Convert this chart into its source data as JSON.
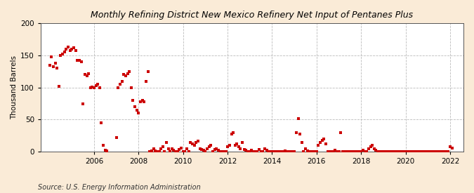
{
  "title": "Monthly Refining District New Mexico Refinery Net Input of Pentanes Plus",
  "ylabel": "Thousand Barrels",
  "source": "Source: U.S. Energy Information Administration",
  "background_color": "#faebd7",
  "plot_background_color": "#ffffff",
  "marker_color": "#cc0000",
  "marker": "s",
  "marker_size": 3,
  "ylim": [
    0,
    200
  ],
  "yticks": [
    0,
    50,
    100,
    150,
    200
  ],
  "xlim_start": 2003.6,
  "xlim_end": 2022.6,
  "xticks": [
    2006,
    2008,
    2010,
    2012,
    2014,
    2016,
    2018,
    2020,
    2022
  ],
  "data": [
    [
      2004.0,
      135
    ],
    [
      2004.08,
      148
    ],
    [
      2004.17,
      133
    ],
    [
      2004.25,
      138
    ],
    [
      2004.33,
      130
    ],
    [
      2004.42,
      102
    ],
    [
      2004.5,
      150
    ],
    [
      2004.58,
      152
    ],
    [
      2004.67,
      155
    ],
    [
      2004.75,
      160
    ],
    [
      2004.83,
      163
    ],
    [
      2004.92,
      158
    ],
    [
      2005.0,
      160
    ],
    [
      2005.08,
      162
    ],
    [
      2005.17,
      158
    ],
    [
      2005.25,
      142
    ],
    [
      2005.33,
      142
    ],
    [
      2005.42,
      140
    ],
    [
      2005.5,
      75
    ],
    [
      2005.58,
      120
    ],
    [
      2005.67,
      118
    ],
    [
      2005.75,
      122
    ],
    [
      2005.83,
      100
    ],
    [
      2005.92,
      101
    ],
    [
      2006.0,
      100
    ],
    [
      2006.08,
      103
    ],
    [
      2006.17,
      105
    ],
    [
      2006.25,
      100
    ],
    [
      2006.33,
      45
    ],
    [
      2006.42,
      10
    ],
    [
      2006.5,
      2
    ],
    [
      2006.58,
      1
    ],
    [
      2007.0,
      22
    ],
    [
      2007.08,
      100
    ],
    [
      2007.17,
      105
    ],
    [
      2007.25,
      110
    ],
    [
      2007.33,
      120
    ],
    [
      2007.42,
      118
    ],
    [
      2007.5,
      122
    ],
    [
      2007.58,
      125
    ],
    [
      2007.67,
      100
    ],
    [
      2007.75,
      80
    ],
    [
      2007.83,
      70
    ],
    [
      2007.92,
      65
    ],
    [
      2008.0,
      60
    ],
    [
      2008.08,
      78
    ],
    [
      2008.17,
      80
    ],
    [
      2008.25,
      78
    ],
    [
      2008.33,
      110
    ],
    [
      2008.42,
      125
    ],
    [
      2008.5,
      0
    ],
    [
      2008.58,
      1
    ],
    [
      2008.67,
      5
    ],
    [
      2008.75,
      1
    ],
    [
      2008.83,
      0
    ],
    [
      2008.92,
      0
    ],
    [
      2009.0,
      5
    ],
    [
      2009.08,
      8
    ],
    [
      2009.17,
      0
    ],
    [
      2009.25,
      15
    ],
    [
      2009.33,
      5
    ],
    [
      2009.42,
      0
    ],
    [
      2009.5,
      5
    ],
    [
      2009.58,
      2
    ],
    [
      2009.67,
      0
    ],
    [
      2009.75,
      0
    ],
    [
      2009.83,
      4
    ],
    [
      2009.92,
      6
    ],
    [
      2010.0,
      0
    ],
    [
      2010.08,
      0
    ],
    [
      2010.17,
      5
    ],
    [
      2010.25,
      0
    ],
    [
      2010.33,
      15
    ],
    [
      2010.42,
      12
    ],
    [
      2010.5,
      10
    ],
    [
      2010.58,
      15
    ],
    [
      2010.67,
      17
    ],
    [
      2010.75,
      5
    ],
    [
      2010.83,
      3
    ],
    [
      2010.92,
      2
    ],
    [
      2011.0,
      0
    ],
    [
      2011.08,
      5
    ],
    [
      2011.17,
      8
    ],
    [
      2011.25,
      10
    ],
    [
      2011.33,
      0
    ],
    [
      2011.42,
      3
    ],
    [
      2011.5,
      5
    ],
    [
      2011.58,
      2
    ],
    [
      2011.67,
      0
    ],
    [
      2011.75,
      0
    ],
    [
      2011.83,
      0
    ],
    [
      2011.92,
      0
    ],
    [
      2012.0,
      8
    ],
    [
      2012.08,
      10
    ],
    [
      2012.17,
      28
    ],
    [
      2012.25,
      30
    ],
    [
      2012.33,
      10
    ],
    [
      2012.42,
      12
    ],
    [
      2012.5,
      8
    ],
    [
      2012.58,
      5
    ],
    [
      2012.67,
      15
    ],
    [
      2012.75,
      3
    ],
    [
      2012.83,
      2
    ],
    [
      2012.92,
      0
    ],
    [
      2013.0,
      0
    ],
    [
      2013.08,
      2
    ],
    [
      2013.17,
      0
    ],
    [
      2013.25,
      0
    ],
    [
      2013.33,
      0
    ],
    [
      2013.42,
      3
    ],
    [
      2013.5,
      0
    ],
    [
      2013.58,
      0
    ],
    [
      2013.67,
      5
    ],
    [
      2013.75,
      2
    ],
    [
      2013.83,
      0
    ],
    [
      2013.92,
      0
    ],
    [
      2014.0,
      0
    ],
    [
      2014.08,
      0
    ],
    [
      2014.17,
      0
    ],
    [
      2014.25,
      0
    ],
    [
      2014.33,
      0
    ],
    [
      2014.42,
      0
    ],
    [
      2014.5,
      0
    ],
    [
      2014.58,
      1
    ],
    [
      2014.67,
      0
    ],
    [
      2014.75,
      0
    ],
    [
      2014.83,
      0
    ],
    [
      2014.92,
      0
    ],
    [
      2015.0,
      0
    ],
    [
      2015.08,
      30
    ],
    [
      2015.17,
      52
    ],
    [
      2015.25,
      28
    ],
    [
      2015.33,
      15
    ],
    [
      2015.42,
      0
    ],
    [
      2015.5,
      5
    ],
    [
      2015.58,
      1
    ],
    [
      2015.67,
      0
    ],
    [
      2015.75,
      0
    ],
    [
      2015.83,
      0
    ],
    [
      2015.92,
      0
    ],
    [
      2016.0,
      0
    ],
    [
      2016.08,
      10
    ],
    [
      2016.17,
      15
    ],
    [
      2016.25,
      18
    ],
    [
      2016.33,
      20
    ],
    [
      2016.42,
      12
    ],
    [
      2016.5,
      0
    ],
    [
      2016.58,
      0
    ],
    [
      2016.67,
      0
    ],
    [
      2016.75,
      0
    ],
    [
      2016.83,
      2
    ],
    [
      2016.92,
      0
    ],
    [
      2017.0,
      0
    ],
    [
      2017.08,
      30
    ],
    [
      2017.17,
      0
    ],
    [
      2017.25,
      0
    ],
    [
      2017.33,
      0
    ],
    [
      2017.42,
      0
    ],
    [
      2017.5,
      0
    ],
    [
      2017.58,
      0
    ],
    [
      2017.67,
      0
    ],
    [
      2017.75,
      0
    ],
    [
      2017.83,
      0
    ],
    [
      2017.92,
      0
    ],
    [
      2018.0,
      0
    ],
    [
      2018.08,
      2
    ],
    [
      2018.17,
      0
    ],
    [
      2018.25,
      0
    ],
    [
      2018.33,
      5
    ],
    [
      2018.42,
      8
    ],
    [
      2018.5,
      10
    ],
    [
      2018.58,
      5
    ],
    [
      2018.67,
      2
    ],
    [
      2018.75,
      0
    ],
    [
      2018.83,
      0
    ],
    [
      2018.92,
      0
    ],
    [
      2019.0,
      0
    ],
    [
      2019.08,
      0
    ],
    [
      2019.17,
      0
    ],
    [
      2019.25,
      0
    ],
    [
      2019.33,
      0
    ],
    [
      2019.42,
      0
    ],
    [
      2019.5,
      0
    ],
    [
      2019.58,
      0
    ],
    [
      2019.67,
      0
    ],
    [
      2019.75,
      0
    ],
    [
      2019.83,
      0
    ],
    [
      2019.92,
      0
    ],
    [
      2020.0,
      0
    ],
    [
      2020.08,
      0
    ],
    [
      2020.17,
      0
    ],
    [
      2020.25,
      0
    ],
    [
      2020.33,
      0
    ],
    [
      2020.42,
      0
    ],
    [
      2020.5,
      0
    ],
    [
      2020.58,
      0
    ],
    [
      2020.67,
      0
    ],
    [
      2020.75,
      0
    ],
    [
      2020.83,
      0
    ],
    [
      2020.92,
      0
    ],
    [
      2021.0,
      0
    ],
    [
      2021.08,
      0
    ],
    [
      2021.17,
      0
    ],
    [
      2021.25,
      0
    ],
    [
      2021.33,
      0
    ],
    [
      2021.42,
      0
    ],
    [
      2021.5,
      0
    ],
    [
      2021.58,
      0
    ],
    [
      2021.67,
      0
    ],
    [
      2021.75,
      0
    ],
    [
      2021.83,
      0
    ],
    [
      2021.92,
      0
    ],
    [
      2022.0,
      8
    ],
    [
      2022.08,
      6
    ]
  ]
}
